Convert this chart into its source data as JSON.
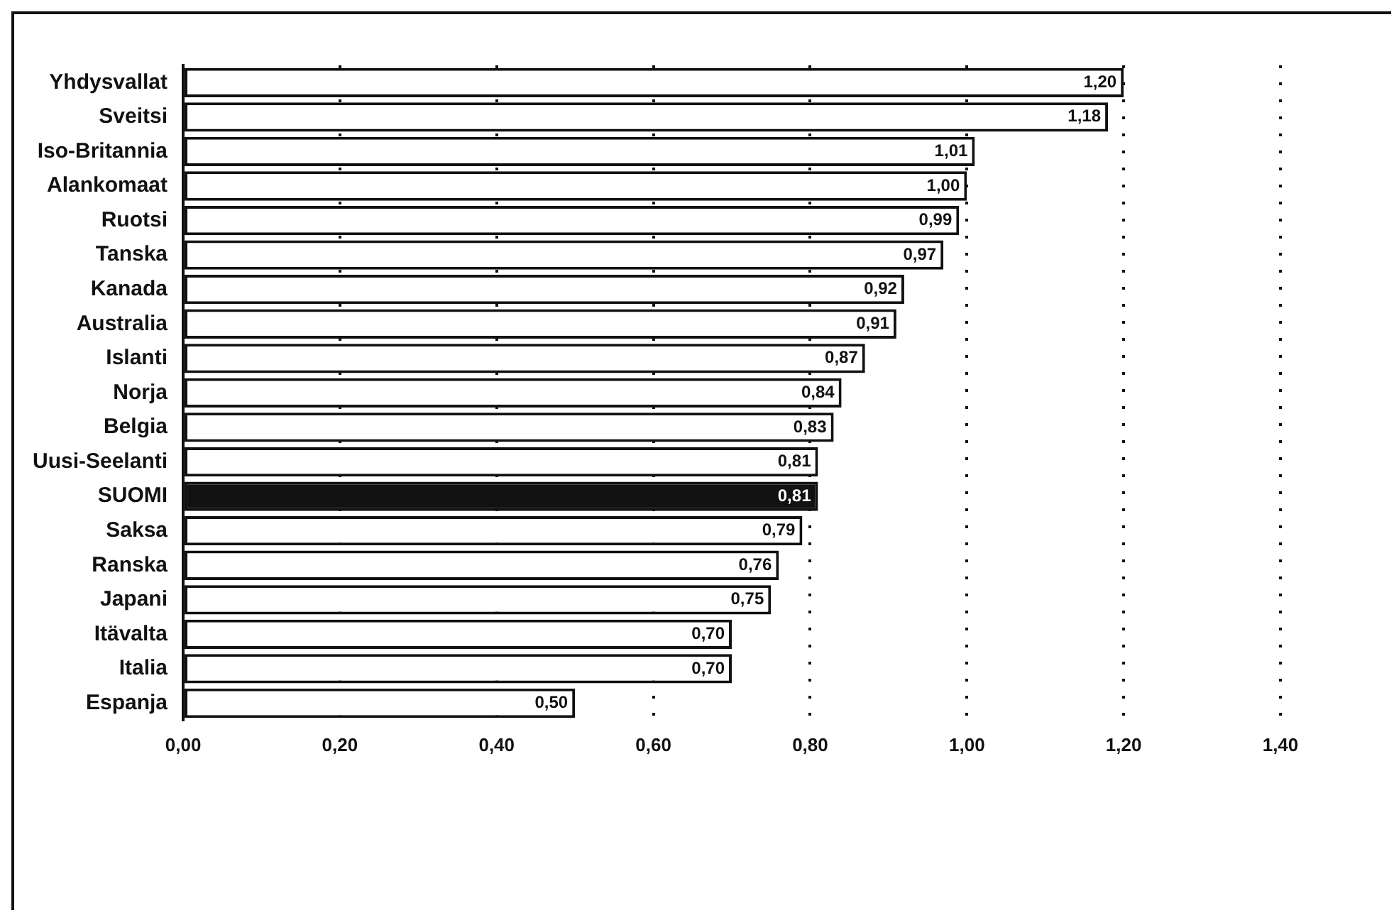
{
  "chart_data": {
    "type": "bar",
    "orientation": "horizontal",
    "categories": [
      "Yhdysvallat",
      "Sveitsi",
      "Iso-Britannia",
      "Alankomaat",
      "Ruotsi",
      "Tanska",
      "Kanada",
      "Australia",
      "Islanti",
      "Norja",
      "Belgia",
      "Uusi-Seelanti",
      "SUOMI",
      "Saksa",
      "Ranska",
      "Japani",
      "Itävalta",
      "Italia",
      "Espanja"
    ],
    "values": [
      1.2,
      1.18,
      1.01,
      1.0,
      0.99,
      0.97,
      0.92,
      0.91,
      0.87,
      0.84,
      0.83,
      0.81,
      0.81,
      0.79,
      0.76,
      0.75,
      0.7,
      0.7,
      0.5
    ],
    "value_labels": [
      "1,20",
      "1,18",
      "1,01",
      "1,00",
      "0,99",
      "0,97",
      "0,92",
      "0,91",
      "0,87",
      "0,84",
      "0,83",
      "0,81",
      "0,81",
      "0,79",
      "0,76",
      "0,75",
      "0,70",
      "0,70",
      "0,50"
    ],
    "colors": [
      "#ffffff",
      "#ffffff",
      "#ffffff",
      "#ffffff",
      "#ffffff",
      "#ffffff",
      "#ffffff",
      "#ffffff",
      "#ffffff",
      "#ffffff",
      "#ffffff",
      "#ffffff",
      "#111111",
      "#ffffff",
      "#ffffff",
      "#ffffff",
      "#ffffff",
      "#ffffff",
      "#ffffff"
    ],
    "xlim": [
      0,
      1.4
    ],
    "xticks": [
      {
        "value": 0,
        "label": "0,00"
      },
      {
        "value": 0.2,
        "label": "0,20"
      },
      {
        "value": 0.4,
        "label": "0,40"
      },
      {
        "value": 0.6,
        "label": "0,60"
      },
      {
        "value": 0.8,
        "label": "0,80"
      },
      {
        "value": 1.0,
        "label": "1,00"
      },
      {
        "value": 1.2,
        "label": "1,20"
      },
      {
        "value": 1.4,
        "label": "1,40"
      }
    ],
    "grid": "x",
    "legend": false
  }
}
